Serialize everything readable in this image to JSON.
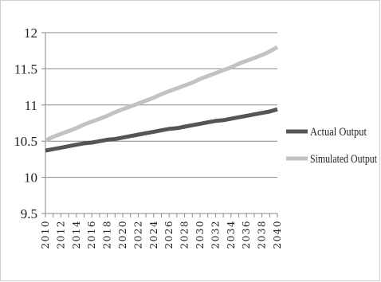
{
  "chart_data": {
    "type": "line",
    "title": "",
    "xlabel": "",
    "ylabel": "",
    "ylim": [
      9.5,
      12
    ],
    "yticks": [
      "9.5",
      "10",
      "10.5",
      "11",
      "11.5",
      "12"
    ],
    "x": [
      2010,
      2011,
      2012,
      2013,
      2014,
      2015,
      2016,
      2017,
      2018,
      2019,
      2020,
      2021,
      2022,
      2023,
      2024,
      2025,
      2026,
      2027,
      2028,
      2029,
      2030,
      2031,
      2032,
      2033,
      2034,
      2035,
      2036,
      2037,
      2038,
      2039,
      2040
    ],
    "xticks": [
      "2010",
      "2012",
      "2014",
      "2016",
      "2018",
      "2020",
      "2022",
      "2024",
      "2026",
      "2028",
      "2030",
      "2032",
      "2034",
      "2036",
      "2038",
      "2040"
    ],
    "grid": "horizontal",
    "legend_position": "right",
    "series": [
      {
        "name": "Actual Output",
        "color": "#555555",
        "values": [
          10.37,
          10.39,
          10.41,
          10.43,
          10.45,
          10.47,
          10.48,
          10.5,
          10.52,
          10.53,
          10.55,
          10.57,
          10.59,
          10.61,
          10.63,
          10.65,
          10.67,
          10.68,
          10.7,
          10.72,
          10.74,
          10.76,
          10.78,
          10.79,
          10.81,
          10.83,
          10.85,
          10.87,
          10.89,
          10.91,
          10.94
        ]
      },
      {
        "name": "Simulated Output",
        "color": "#c2c2c2",
        "values": [
          10.51,
          10.56,
          10.6,
          10.64,
          10.68,
          10.73,
          10.77,
          10.81,
          10.85,
          10.9,
          10.94,
          10.98,
          11.02,
          11.06,
          11.1,
          11.15,
          11.19,
          11.23,
          11.27,
          11.31,
          11.36,
          11.4,
          11.44,
          11.48,
          11.52,
          11.57,
          11.61,
          11.65,
          11.69,
          11.74,
          11.8
        ]
      }
    ]
  }
}
